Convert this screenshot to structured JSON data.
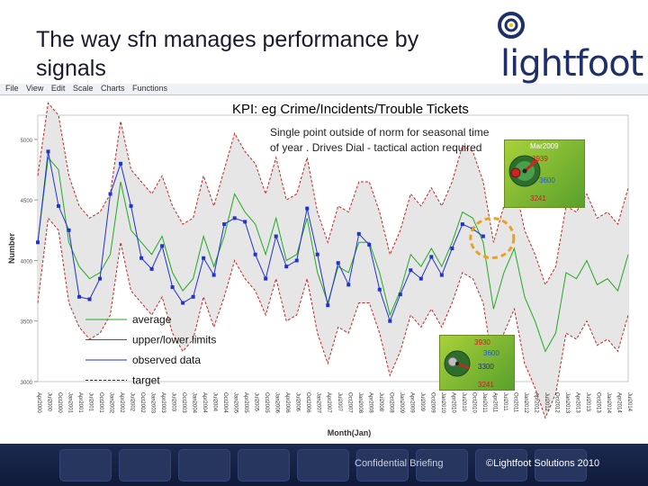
{
  "slide": {
    "title": "The way sfn manages performance by signals",
    "logo_text": "lightfoot",
    "menu": [
      "File",
      "View",
      "Edit",
      "Scale",
      "Charts",
      "Functions"
    ],
    "kpi_label": "KPI: eg Crime/Incidents/Trouble Tickets",
    "note": "Single point outside of norm for seasonal time of year . Drives Dial - tactical action required",
    "dial_top": {
      "title": "Mar2009",
      "upper": "3939",
      "center": "3600",
      "lower": "3241"
    },
    "dial_bottom": {
      "upper": "3930",
      "center": "3600",
      "value": "3300",
      "lower": "3241"
    },
    "footer_confidential": "Confidential Briefing",
    "footer_copyright": "©Lightfoot Solutions 2010",
    "colors": {
      "average": "#22aa22",
      "limits": "#cc2222",
      "observed": "#2233cc",
      "band": "#e6e6e6",
      "highlight": "#e8a020",
      "footer": "#1b2a52"
    }
  },
  "chart_data": {
    "type": "line",
    "title": "",
    "xlabel": "Month(Jan)",
    "ylabel": "Number",
    "ylim": [
      3000,
      5200
    ],
    "yticks": [
      3000,
      3500,
      4000,
      4500,
      5000
    ],
    "ytick_labels": [
      "3000",
      "3500",
      "4000",
      "4500",
      "5000"
    ],
    "x_tick_labels": [
      "Apr2000",
      "Jul2000",
      "Oct2000",
      "Jan2001",
      "Apr2001",
      "Jul2001",
      "Oct2001",
      "Jan2002",
      "Apr2002",
      "Jul2002",
      "Oct2002",
      "Jan2003",
      "Apr2003",
      "Jul2003",
      "Oct2003",
      "Jan2004",
      "Apr2004",
      "Jul2004",
      "Oct2004",
      "Jan2005",
      "Apr2005",
      "Jul2005",
      "Oct2005",
      "Jan2006",
      "Apr2006",
      "Jul2006",
      "Oct2006",
      "Jan2007",
      "Apr2007",
      "Jul2007",
      "Oct2007",
      "Jan2008",
      "Apr2008",
      "Jul2008",
      "Oct2008",
      "Jan2009",
      "Apr2009",
      "Jul2009",
      "Oct2009",
      "Jan2010",
      "Apr2010",
      "Jul2010",
      "Oct2010",
      "Jan2011",
      "Apr2011",
      "Jul2011",
      "Oct2011",
      "Jan2012",
      "Apr2012",
      "Jul2012",
      "Oct2012",
      "Jan2013",
      "Apr2013",
      "Jul2013",
      "Oct2013",
      "Jan2014",
      "Apr2014",
      "Jul2014",
      "Oct2014",
      "Jan2015",
      "Apr2015",
      "Jul2015",
      "Oct2015",
      "Jan2016",
      "Apr2016",
      "Jul2016",
      "Oct2016",
      "Jan2017",
      "Apr2017",
      "Jul2017",
      "Oct2017",
      "Jan2018",
      "Apr2018",
      "Jul2018",
      "Oct2018",
      "Jan2019"
    ],
    "n_points": 58,
    "observed_count": 44,
    "series": [
      {
        "name": "average",
        "style": "solid",
        "color": "#22aa22",
        "values": [
          4150,
          4850,
          4750,
          4150,
          3950,
          3850,
          3900,
          4050,
          4650,
          4250,
          4150,
          4050,
          4200,
          3900,
          3750,
          3850,
          4200,
          3950,
          4200,
          4550,
          4400,
          4300,
          4050,
          4350,
          4000,
          4050,
          4350,
          3900,
          3650,
          3950,
          3900,
          4150,
          4150,
          3900,
          3550,
          3750,
          4050,
          3950,
          4100,
          3950,
          4150,
          4400,
          4350,
          4150,
          3600,
          3900,
          4100,
          3700,
          3500,
          3250,
          3400,
          3900,
          3850,
          4000,
          3800,
          3850,
          3750,
          4050
        ]
      },
      {
        "name": "upper/lower limits",
        "style": "dashed",
        "color": "#cc2222",
        "upper": [
          4700,
          5300,
          5200,
          4700,
          4450,
          4350,
          4400,
          4550,
          5150,
          4750,
          4650,
          4550,
          4700,
          4450,
          4300,
          4350,
          4700,
          4450,
          4750,
          5050,
          4900,
          4800,
          4550,
          4850,
          4500,
          4550,
          4850,
          4400,
          4150,
          4450,
          4400,
          4650,
          4650,
          4400,
          4050,
          4250,
          4550,
          4450,
          4600,
          4450,
          4650,
          4950,
          4900,
          4650,
          4150,
          4450,
          4650,
          4250,
          4050,
          3800,
          3950,
          4450,
          4400,
          4550,
          4350,
          4400,
          4300,
          4600
        ],
        "lower": [
          3650,
          4350,
          4250,
          3650,
          3450,
          3350,
          3400,
          3550,
          4150,
          3750,
          3650,
          3550,
          3700,
          3400,
          3250,
          3350,
          3700,
          3450,
          3700,
          4000,
          3850,
          3750,
          3550,
          3850,
          3500,
          3550,
          3850,
          3400,
          3150,
          3450,
          3400,
          3650,
          3650,
          3400,
          3050,
          3250,
          3550,
          3450,
          3600,
          3450,
          3650,
          3900,
          3850,
          3650,
          3100,
          3400,
          3600,
          3150,
          2950,
          2700,
          2900,
          3400,
          3350,
          3500,
          3300,
          3350,
          3250,
          3550
        ]
      },
      {
        "name": "observed data",
        "style": "solid-markers",
        "color": "#2233cc",
        "values": [
          4150,
          4900,
          4450,
          4250,
          3700,
          3680,
          3850,
          4550,
          4800,
          4450,
          4020,
          3930,
          4120,
          3780,
          3650,
          3700,
          4020,
          3880,
          4300,
          4350,
          4320,
          4050,
          3850,
          4200,
          3950,
          4000,
          4430,
          4050,
          3630,
          3980,
          3800,
          4220,
          4130,
          3760,
          3500,
          3720,
          3920,
          3850,
          4030,
          3880,
          4100,
          4300,
          4260,
          4200
        ]
      },
      {
        "name": "target",
        "style": "dashed",
        "color": "#333333",
        "values": []
      }
    ],
    "legend": [
      "average",
      "upper/lower limits",
      "observed data",
      "target"
    ],
    "legend_position": "bottom-left",
    "grid": false
  }
}
